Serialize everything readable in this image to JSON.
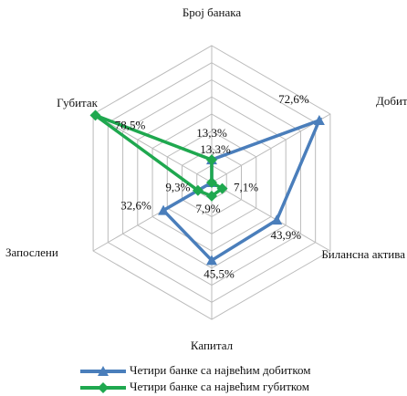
{
  "chart_data": {
    "type": "radar",
    "categories": [
      "Број банака",
      "Добитак",
      "Билансна актива",
      "Капитал",
      "Запослени",
      "Губитак"
    ],
    "series": [
      {
        "name": "Четири банке са највећим добитком",
        "color": "#4a7ebb",
        "marker": "triangle",
        "values": [
          13.3,
          72.6,
          43.9,
          45.5,
          32.6,
          0
        ],
        "value_labels": [
          "13,3%",
          "72,6%",
          "43,9%",
          "45,5%",
          "32,6%",
          null
        ]
      },
      {
        "name": "Четири банке са највећим губитком",
        "color": "#1fa84f",
        "marker": "diamond",
        "values": [
          13.3,
          0,
          7.1,
          7.9,
          9.3,
          78.5
        ],
        "value_labels": [
          "13,3%",
          null,
          "7,1%",
          "7,9%",
          "9,3%",
          "78,5%"
        ]
      }
    ],
    "rlim": [
      0,
      80
    ],
    "rticks": [
      0,
      10,
      20,
      30,
      40,
      50,
      60,
      70,
      80
    ],
    "grid": true,
    "legend": "bottom"
  }
}
